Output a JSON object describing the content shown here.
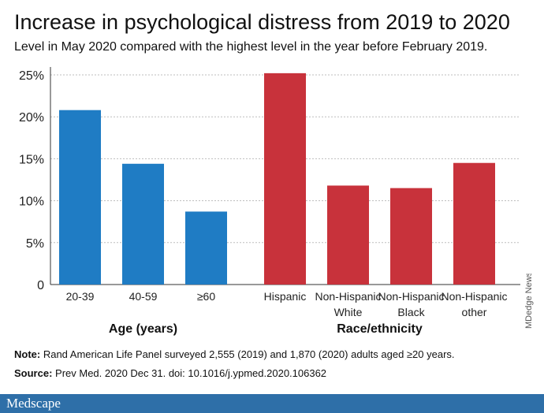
{
  "header": {
    "title": "Increase in psychological distress from 2019 to 2020",
    "subtitle": "Level in May 2020 compared with the highest level in the year before February 2019."
  },
  "chart_data": {
    "type": "bar",
    "yticks": [
      "0",
      "5%",
      "10%",
      "15%",
      "20%",
      "25%"
    ],
    "ylim": [
      0,
      25
    ],
    "grid": true,
    "colors": {
      "age": "#1f7cc4",
      "race": "#c8323b"
    },
    "groups": [
      {
        "label": "Age (years)",
        "color": "#1f7cc4",
        "categories": [
          [
            "20-39"
          ],
          [
            "40-59"
          ],
          [
            "≥60"
          ]
        ],
        "values": [
          20.8,
          14.4,
          8.7
        ]
      },
      {
        "label": "Race/ethnicity",
        "color": "#c8323b",
        "categories": [
          [
            "Hispanic"
          ],
          [
            "Non-Hispanic",
            "White"
          ],
          [
            "Non-Hispanic",
            "Black"
          ],
          [
            "Non-Hispanic",
            "other"
          ]
        ],
        "values": [
          25.2,
          11.8,
          11.5,
          14.5
        ]
      }
    ]
  },
  "notes": {
    "note_label": "Note:",
    "note_text": " Rand American Life Panel surveyed 2,555 (2019) and 1,870 (2020) adults aged ≥20 years.",
    "source_label": "Source:",
    "source_text": " Prev Med. 2020 Dec 31. doi: 10.1016/j.ypmed.2020.106362"
  },
  "credit": "MDedge News",
  "footer": {
    "logo": "Medscape"
  }
}
